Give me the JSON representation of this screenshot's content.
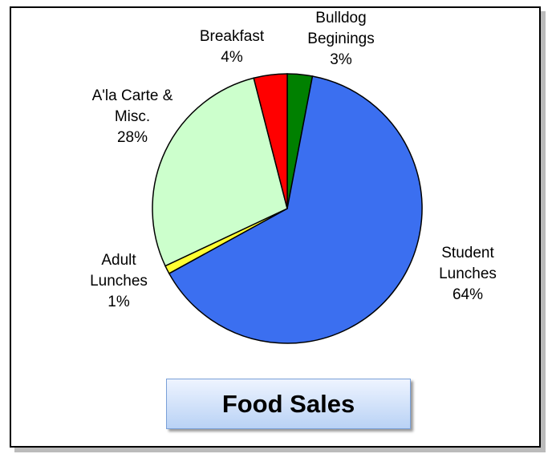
{
  "chart_data": {
    "type": "pie",
    "title": "Food Sales",
    "categories": [
      "Bulldog Beginings",
      "Student Lunches",
      "Adult Lunches",
      "A'la Carte & Misc.",
      "Breakfast"
    ],
    "values": [
      3,
      64,
      1,
      28,
      4
    ],
    "value_labels": [
      "3%",
      "64%",
      "1%",
      "28%",
      "4%"
    ],
    "colors": [
      "#008000",
      "#3b6ff0",
      "#ffff33",
      "#ccffcc",
      "#ff0000"
    ]
  }
}
